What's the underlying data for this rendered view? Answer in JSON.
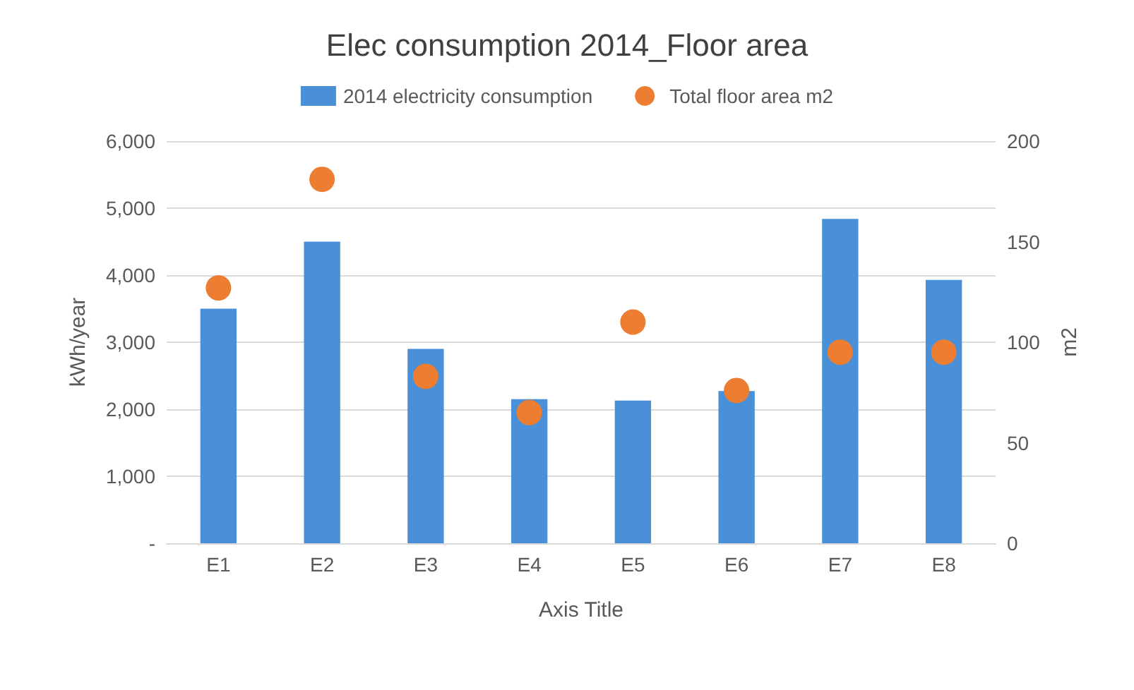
{
  "chart_data": {
    "type": "bar",
    "title": "Elec consumption 2014_Floor area",
    "xlabel": "Axis Title",
    "ylabel": "kWh/year",
    "y2label": "m2",
    "categories": [
      "E1",
      "E2",
      "E3",
      "E4",
      "E5",
      "E6",
      "E7",
      "E8"
    ],
    "series": [
      {
        "name": "2014 electricity consumption",
        "color": "#4a90d9",
        "values": [
          3500,
          4500,
          2900,
          2150,
          2130,
          2270,
          4840,
          3930
        ]
      },
      {
        "name": "Total floor area m2",
        "type": "scatter",
        "axis": "y2",
        "color": "#ed7d31",
        "values": [
          127,
          181,
          83,
          65,
          110,
          76,
          95,
          95
        ]
      }
    ],
    "ylim": [
      0,
      6000
    ],
    "yticks": [
      {
        "value": 0,
        "label": "-"
      },
      {
        "value": 1000,
        "label": "1,000"
      },
      {
        "value": 2000,
        "label": "2,000"
      },
      {
        "value": 3000,
        "label": "3,000"
      },
      {
        "value": 4000,
        "label": "4,000"
      },
      {
        "value": 5000,
        "label": "5,000"
      },
      {
        "value": 6000,
        "label": "6,000"
      }
    ],
    "y2lim": [
      0,
      200
    ],
    "y2ticks": [
      0,
      50,
      100,
      150,
      200
    ],
    "grid": "y",
    "legend": "top",
    "marker": "circle"
  }
}
